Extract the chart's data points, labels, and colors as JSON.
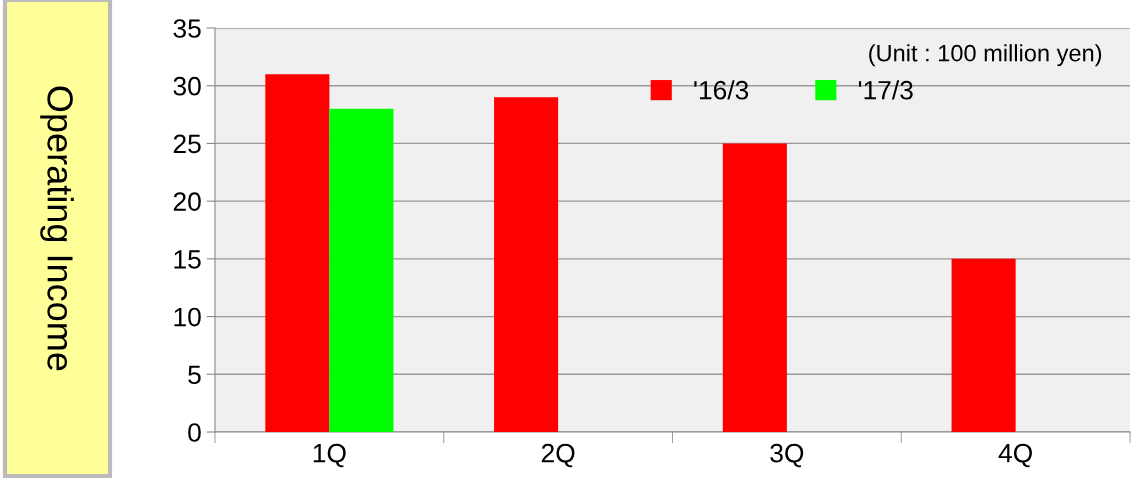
{
  "chart_data": {
    "type": "bar",
    "ylabel": "Operating Income",
    "categories": [
      "1Q",
      "2Q",
      "3Q",
      "4Q"
    ],
    "series": [
      {
        "name": "'16/3",
        "color": "#ff0000",
        "values": [
          31,
          29,
          25,
          15
        ]
      },
      {
        "name": "'17/3",
        "color": "#00ff00",
        "values": [
          28,
          null,
          null,
          null
        ]
      }
    ],
    "ylim": [
      0,
      35
    ],
    "yticks": [
      0,
      5,
      10,
      15,
      20,
      25,
      30,
      35
    ],
    "grid": "y",
    "legend": "top",
    "annotations": [
      "(Unit : 100 million yen)"
    ]
  }
}
